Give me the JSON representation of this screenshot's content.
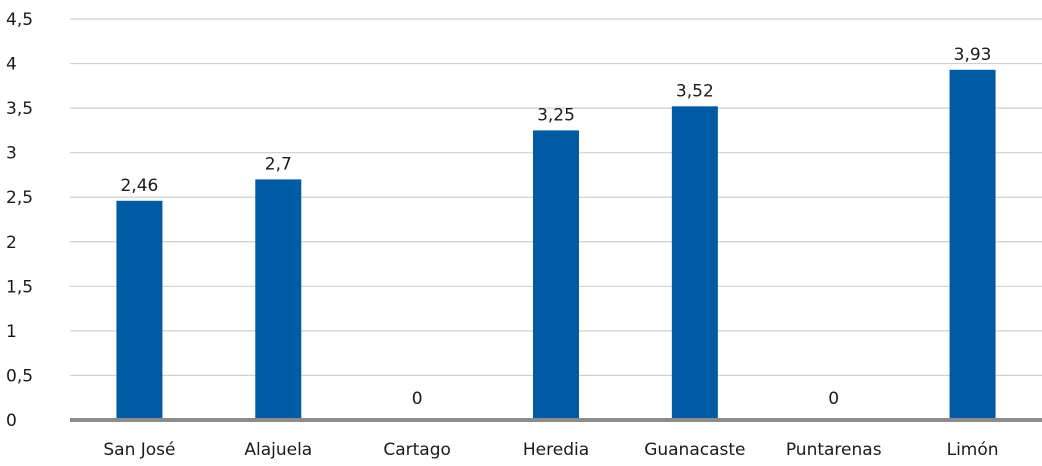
{
  "chart_data": {
    "type": "bar",
    "categories": [
      "San José",
      "Alajuela",
      "Cartago",
      "Heredia",
      "Guanacaste",
      "Puntarenas",
      "Limón"
    ],
    "values": [
      2.46,
      2.7,
      0,
      3.25,
      3.52,
      0,
      3.93
    ],
    "value_labels": [
      "2,46",
      "2,7",
      "0",
      "3,25",
      "3,52",
      "0",
      "3,93"
    ],
    "title": "",
    "xlabel": "",
    "ylabel": "",
    "ylim": [
      0,
      4.5
    ],
    "yticks": [
      0,
      0.5,
      1,
      1.5,
      2,
      2.5,
      3,
      3.5,
      4,
      4.5
    ],
    "ytick_labels": [
      "0",
      "0,5",
      "1",
      "1,5",
      "2",
      "2,5",
      "3",
      "3,5",
      "4",
      "4,5"
    ],
    "grid": true,
    "legend": "none",
    "colors": {
      "bar": "#005ba4",
      "grid": "#cfcfcf",
      "axis": "#8c8c8c",
      "text": "#1a1a1a"
    }
  }
}
